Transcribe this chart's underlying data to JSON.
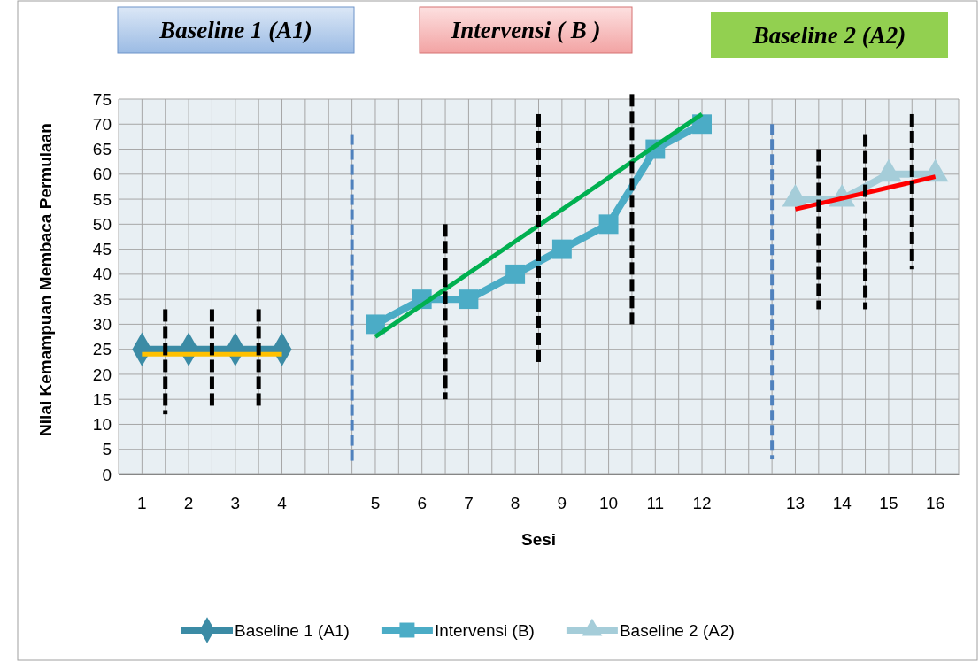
{
  "chart_data": {
    "type": "line",
    "annotations": [
      "Baseline 1 (A1)",
      "Intervensi ( B )",
      "Baseline 2 (A2)"
    ],
    "xlabel": "Sesi",
    "ylabel": "Nilai Kemampuan Membaca Permulaan",
    "categories": [
      "1",
      "2",
      "3",
      "4",
      null,
      "5",
      "6",
      "7",
      "8",
      "9",
      "10",
      "11",
      "12",
      null,
      "13",
      "14",
      "15",
      "16"
    ],
    "ylim": [
      0,
      75
    ],
    "yticks": [
      0,
      5,
      10,
      15,
      20,
      25,
      30,
      35,
      40,
      45,
      50,
      55,
      60,
      65,
      70,
      75
    ],
    "grid": true,
    "legend": "bottom",
    "series": [
      {
        "name": "Baseline 1 (A1)",
        "color": "#3b8ba5",
        "marker": "diamond",
        "values": [
          25,
          25,
          25,
          25,
          null,
          null,
          null,
          null,
          null,
          null,
          null,
          null,
          null,
          null,
          null,
          null,
          null,
          null
        ]
      },
      {
        "name": "Intervensi (B)",
        "color": "#4bacc6",
        "marker": "square",
        "values": [
          null,
          null,
          null,
          null,
          null,
          30,
          35,
          35,
          40,
          45,
          50,
          65,
          70,
          null,
          null,
          null,
          null,
          null
        ]
      },
      {
        "name": "Baseline 2 (A2)",
        "color": "#a5cdd9",
        "marker": "triangle",
        "values": [
          null,
          null,
          null,
          null,
          null,
          null,
          null,
          null,
          null,
          null,
          null,
          null,
          null,
          null,
          55,
          55,
          60,
          60
        ]
      },
      {
        "type": "line",
        "color": "#ffc000",
        "marker": "none",
        "x": [
          "1",
          "4"
        ],
        "values": [
          24,
          24
        ]
      },
      {
        "type": "line",
        "color": "#00b050",
        "marker": "none",
        "x": [
          "5",
          "12"
        ],
        "values": [
          27.5,
          72
        ]
      },
      {
        "type": "line",
        "color": "#ff0000",
        "marker": "none",
        "x": [
          "13",
          "16"
        ],
        "values": [
          53,
          59.5
        ]
      }
    ]
  }
}
